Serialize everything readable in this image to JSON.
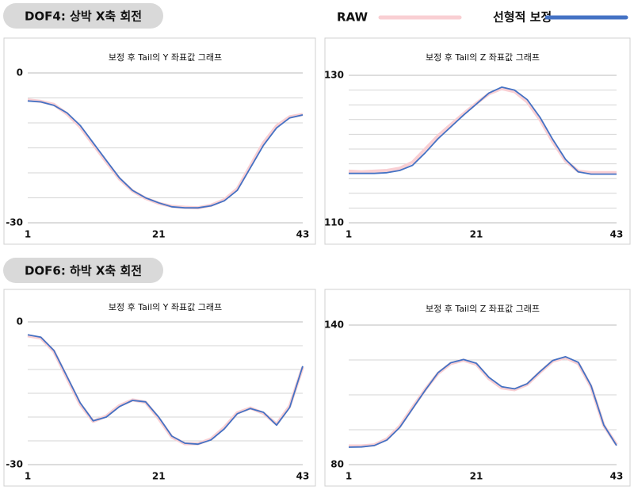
{
  "sections": [
    {
      "label": "DOF4: 상박 X축 회전"
    },
    {
      "label": "DOF6: 하박 X축 회전"
    }
  ],
  "chart_data": [
    {
      "type": "line",
      "title": "보정 후 Tail의 Y 좌표값 그래프",
      "x": [
        1,
        3,
        5,
        7,
        9,
        11,
        13,
        15,
        17,
        19,
        21,
        23,
        25,
        27,
        29,
        31,
        33,
        35,
        37,
        39,
        41,
        43
      ],
      "series": [
        {
          "name": "RAW",
          "color": "#f9cfd3",
          "values": [
            -5.4,
            -5.7,
            -6.3,
            -8.2,
            -10.8,
            -14.3,
            -17.8,
            -21.2,
            -23.6,
            -25.1,
            -26.1,
            -26.7,
            -26.9,
            -27,
            -26.5,
            -25.4,
            -23.2,
            -18.6,
            -14,
            -10.6,
            -8.8,
            -8.3
          ]
        },
        {
          "name": "선형적 보정",
          "color": "#4472c4",
          "values": [
            -5.6,
            -5.8,
            -6.5,
            -8,
            -10.5,
            -14,
            -17.5,
            -21,
            -23.5,
            -25,
            -26,
            -26.8,
            -27,
            -27,
            -26.6,
            -25.6,
            -23.5,
            -19,
            -14.5,
            -11,
            -9,
            -8.4
          ]
        }
      ],
      "xlim": [
        1,
        43
      ],
      "xticks": [
        1,
        21,
        43
      ],
      "ylim": [
        -30,
        0
      ],
      "yticks": [
        0,
        -30
      ],
      "minor_yticks": [
        -5,
        -10,
        -15,
        -20,
        -25
      ],
      "grid": true
    },
    {
      "type": "line",
      "title": "보정 후 Tail의 Z 좌표값 그래프",
      "x": [
        1,
        3,
        5,
        7,
        9,
        11,
        13,
        15,
        17,
        19,
        21,
        23,
        25,
        27,
        29,
        31,
        33,
        35,
        37,
        39,
        41,
        43
      ],
      "series": [
        {
          "name": "RAW",
          "color": "#f9cfd3",
          "values": [
            117,
            116.9,
            117,
            117.1,
            117.4,
            118.2,
            120,
            121.8,
            123.3,
            124.8,
            126.2,
            127.5,
            128.2,
            127.8,
            126.4,
            124,
            121,
            118.4,
            117,
            116.8,
            116.8,
            116.8
          ]
        },
        {
          "name": "선형적 보정",
          "color": "#4472c4",
          "values": [
            116.7,
            116.7,
            116.7,
            116.8,
            117.1,
            117.8,
            119.5,
            121.4,
            123,
            124.6,
            126.1,
            127.6,
            128.4,
            128,
            126.7,
            124.3,
            121.3,
            118.6,
            116.9,
            116.6,
            116.6,
            116.6
          ]
        }
      ],
      "xlim": [
        1,
        43
      ],
      "xticks": [
        1,
        21,
        43
      ],
      "ylim": [
        110,
        130
      ],
      "yticks": [
        130,
        110
      ],
      "minor_yticks": [
        112,
        114,
        116,
        118,
        120,
        122,
        124,
        126,
        128
      ],
      "grid": true
    },
    {
      "type": "line",
      "title": "보정 후 Tail의 Y 좌표값 그래프",
      "x": [
        1,
        3,
        5,
        7,
        9,
        11,
        13,
        15,
        17,
        19,
        21,
        23,
        25,
        27,
        29,
        31,
        33,
        35,
        37,
        39,
        41,
        43
      ],
      "series": [
        {
          "name": "RAW",
          "color": "#f9cfd3",
          "values": [
            -2.9,
            -3.4,
            -6.2,
            -11.8,
            -17.3,
            -20.9,
            -19.8,
            -17.6,
            -16.4,
            -16.9,
            -20.3,
            -24.2,
            -25.6,
            -25.6,
            -24.6,
            -22.2,
            -19.1,
            -18.1,
            -19.2,
            -21.5,
            -17.7,
            -9.5
          ]
        },
        {
          "name": "선형적 보정",
          "color": "#4472c4",
          "values": [
            -2.7,
            -3.2,
            -6,
            -11.5,
            -17,
            -20.8,
            -20,
            -17.8,
            -16.5,
            -16.8,
            -20,
            -24,
            -25.5,
            -25.7,
            -24.8,
            -22.5,
            -19.3,
            -18.2,
            -19,
            -21.7,
            -18,
            -9.3
          ]
        }
      ],
      "xlim": [
        1,
        43
      ],
      "xticks": [
        1,
        21,
        43
      ],
      "ylim": [
        -30,
        0
      ],
      "yticks": [
        0,
        -30
      ],
      "minor_yticks": [
        -5,
        -10,
        -15,
        -20,
        -25
      ],
      "grid": true
    },
    {
      "type": "line",
      "title": "보정 후 Tail의 Z 좌표값 그래프",
      "x": [
        1,
        3,
        5,
        7,
        9,
        11,
        13,
        15,
        17,
        19,
        21,
        23,
        25,
        27,
        29,
        31,
        33,
        35,
        37,
        39,
        41,
        43
      ],
      "series": [
        {
          "name": "RAW",
          "color": "#f9cfd3",
          "values": [
            88,
            88,
            88.5,
            91,
            96.5,
            104.5,
            112.3,
            119.2,
            123.5,
            124.9,
            123.2,
            117,
            113,
            112.2,
            114.5,
            119.7,
            124.5,
            126,
            123.5,
            113.5,
            96.8,
            88.6
          ]
        },
        {
          "name": "선형적 보정",
          "color": "#4472c4",
          "values": [
            87.5,
            87.6,
            88.2,
            90.6,
            96,
            104,
            112,
            119.5,
            123.8,
            125.2,
            123.6,
            117.5,
            113.5,
            112.6,
            114.8,
            120,
            124.8,
            126.4,
            124,
            114,
            97,
            88.2
          ]
        }
      ],
      "xlim": [
        1,
        43
      ],
      "xticks": [
        1,
        21,
        43
      ],
      "ylim": [
        80,
        140
      ],
      "yticks": [
        140,
        80
      ],
      "minor_yticks": [
        95,
        110,
        125
      ],
      "grid": true
    }
  ]
}
